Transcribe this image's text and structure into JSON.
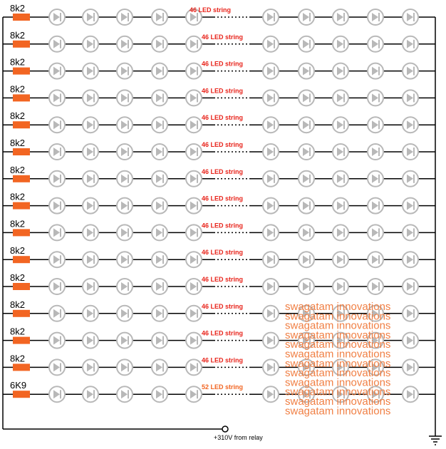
{
  "rows": [
    {
      "resistor": "8k2",
      "string_label": "46 LED string"
    },
    {
      "resistor": "8k2",
      "string_label": "46 LED string"
    },
    {
      "resistor": "8k2",
      "string_label": "46 LED string"
    },
    {
      "resistor": "8k2",
      "string_label": "46 LED string"
    },
    {
      "resistor": "8k2",
      "string_label": "46 LED string"
    },
    {
      "resistor": "8k2",
      "string_label": "46 LED string"
    },
    {
      "resistor": "8k2",
      "string_label": "46 LED string"
    },
    {
      "resistor": "8k2",
      "string_label": "46 LED string"
    },
    {
      "resistor": "8k2",
      "string_label": "46 LED string"
    },
    {
      "resistor": "8k2",
      "string_label": "46 LED string"
    },
    {
      "resistor": "8k2",
      "string_label": "46 LED string"
    },
    {
      "resistor": "8k2",
      "string_label": "46 LED string"
    },
    {
      "resistor": "8k2",
      "string_label": "46 LED string"
    },
    {
      "resistor": "8k2",
      "string_label": "46 LED string"
    },
    {
      "resistor": "6K9",
      "string_label": "52 LED string"
    }
  ],
  "source_label": "+310V from relay",
  "watermark": "swagatam innovations",
  "colors": {
    "wire": "#000000",
    "resistor": "#f26522",
    "led": "#b8b8b8",
    "label_red": "#e8231a",
    "label_orange": "#f26522",
    "watermark": "#f0793a"
  }
}
